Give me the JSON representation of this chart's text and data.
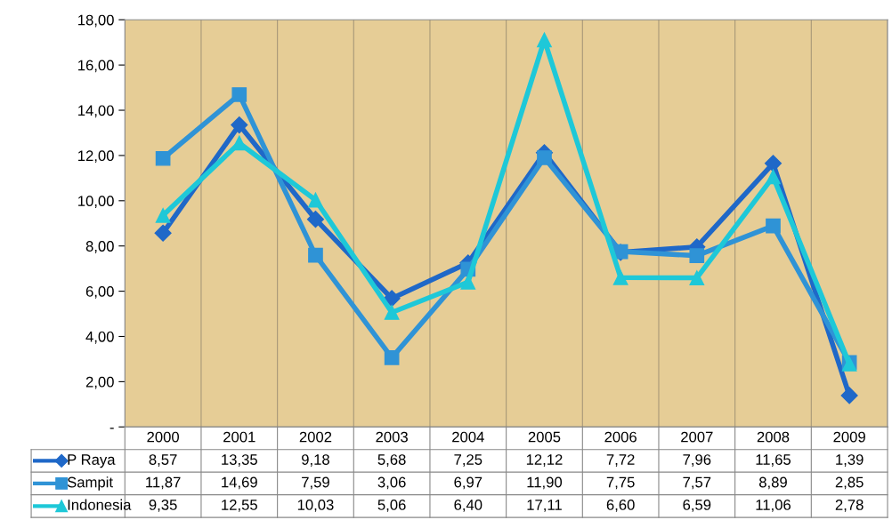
{
  "chart_data": {
    "type": "line",
    "categories": [
      "2000",
      "2001",
      "2002",
      "2003",
      "2004",
      "2005",
      "2006",
      "2007",
      "2008",
      "2009"
    ],
    "series": [
      {
        "name": "P Raya",
        "color": "#1f68c8",
        "marker": "diamond",
        "values": [
          8.57,
          13.35,
          9.18,
          5.68,
          7.25,
          12.12,
          7.72,
          7.96,
          11.65,
          1.39
        ],
        "value_labels": [
          "8,57",
          "13,35",
          "9,18",
          "5,68",
          "7,25",
          "12,12",
          "7,72",
          "7,96",
          "11,65",
          "1,39"
        ]
      },
      {
        "name": "Sampit",
        "color": "#2f93d6",
        "marker": "square",
        "values": [
          11.87,
          14.69,
          7.59,
          3.06,
          6.97,
          11.9,
          7.75,
          7.57,
          8.89,
          2.85
        ],
        "value_labels": [
          "11,87",
          "14,69",
          "7,59",
          "3,06",
          "6,97",
          "11,90",
          "7,75",
          "7,57",
          "8,89",
          "2,85"
        ]
      },
      {
        "name": "Indonesia",
        "color": "#1ec8d8",
        "marker": "triangle",
        "values": [
          9.35,
          12.55,
          10.03,
          5.06,
          6.4,
          17.11,
          6.6,
          6.59,
          11.06,
          2.78
        ],
        "value_labels": [
          "9,35",
          "12,55",
          "10,03",
          "5,06",
          "6,40",
          "17,11",
          "6,60",
          "6,59",
          "11,06",
          "2,78"
        ]
      }
    ],
    "ylim": [
      0,
      18
    ],
    "yticks": [
      {
        "value": 0,
        "label": "-"
      },
      {
        "value": 2,
        "label": "2,00"
      },
      {
        "value": 4,
        "label": "4,00"
      },
      {
        "value": 6,
        "label": "6,00"
      },
      {
        "value": 8,
        "label": "8,00"
      },
      {
        "value": 10,
        "label": "10,00"
      },
      {
        "value": 12,
        "label": "12,00"
      },
      {
        "value": 14,
        "label": "14,00"
      },
      {
        "value": 16,
        "label": "16,00"
      },
      {
        "value": 18,
        "label": "18,00"
      }
    ],
    "grid": "x",
    "legend": "bottom left",
    "line_style": "solid"
  }
}
